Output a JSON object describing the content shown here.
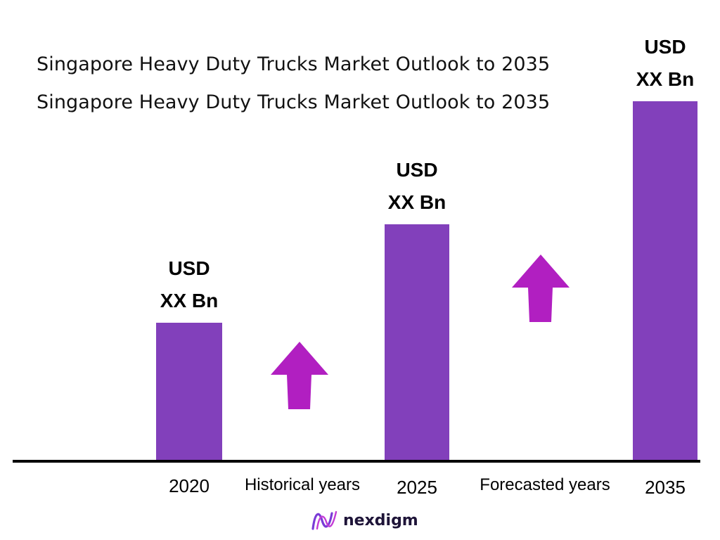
{
  "titles": [
    "Singapore Heavy Duty Trucks Market Outlook to 2035",
    "Singapore Heavy Duty Trucks Market Outlook to 2035"
  ],
  "colors": {
    "bar": "#8240bb",
    "arrow": "#b11fc1",
    "logo_mark": "#7a3bd6"
  },
  "chart_data": {
    "type": "bar",
    "categories": [
      "2020",
      "2025",
      "2035"
    ],
    "values": [
      1,
      1.71,
      2.6
    ],
    "value_labels": [
      [
        "USD",
        "XX Bn"
      ],
      [
        "USD",
        "XX Bn"
      ],
      [
        "USD",
        "XX Bn"
      ]
    ],
    "period_labels": [
      "Historical years",
      "Forecasted years"
    ],
    "grid": false,
    "legend": "none"
  },
  "logo": {
    "text": "nexdigm",
    "icon": "nexdigm-wave-icon"
  }
}
